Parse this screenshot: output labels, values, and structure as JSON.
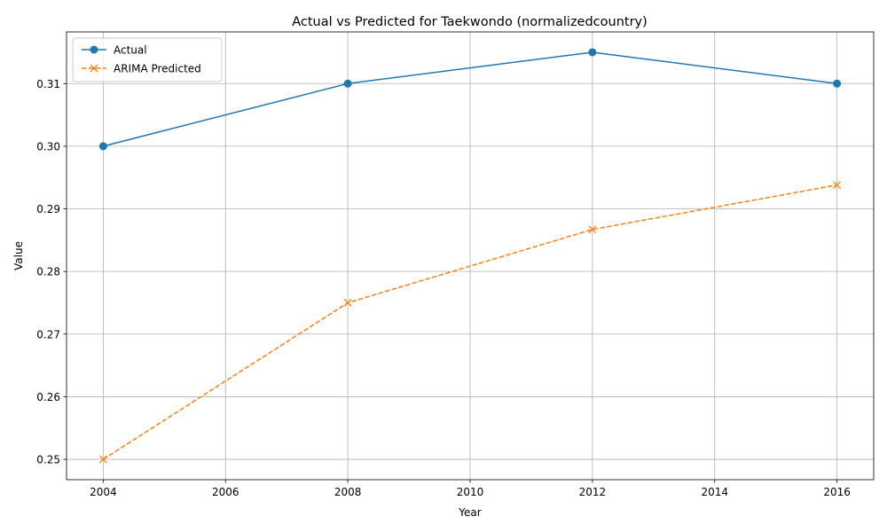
{
  "chart_data": {
    "type": "line",
    "title": "Actual vs Predicted for Taekwondo (normalizedcountry)",
    "xlabel": "Year",
    "ylabel": "Value",
    "x": [
      2004,
      2008,
      2012,
      2016
    ],
    "xlim": [
      2003.4,
      2016.6
    ],
    "ylim": [
      0.24675,
      0.31825
    ],
    "xticks": [
      2004,
      2006,
      2008,
      2010,
      2012,
      2014,
      2016
    ],
    "xtick_labels": [
      "2004",
      "2006",
      "2008",
      "2010",
      "2012",
      "2014",
      "2016"
    ],
    "yticks": [
      0.25,
      0.26,
      0.27,
      0.28,
      0.29,
      0.3,
      0.31
    ],
    "ytick_labels": [
      "0.25",
      "0.26",
      "0.27",
      "0.28",
      "0.29",
      "0.30",
      "0.31"
    ],
    "grid": true,
    "legend_position": "upper-left",
    "series": [
      {
        "name": "Actual",
        "values": [
          0.3,
          0.31,
          0.315,
          0.31
        ],
        "color": "#1f77b4",
        "line_style": "solid",
        "marker": "circle"
      },
      {
        "name": "ARIMA Predicted",
        "values": [
          0.25,
          0.275,
          0.2867,
          0.2938
        ],
        "color": "#ff7f0e",
        "line_style": "dashed",
        "marker": "x"
      }
    ]
  }
}
